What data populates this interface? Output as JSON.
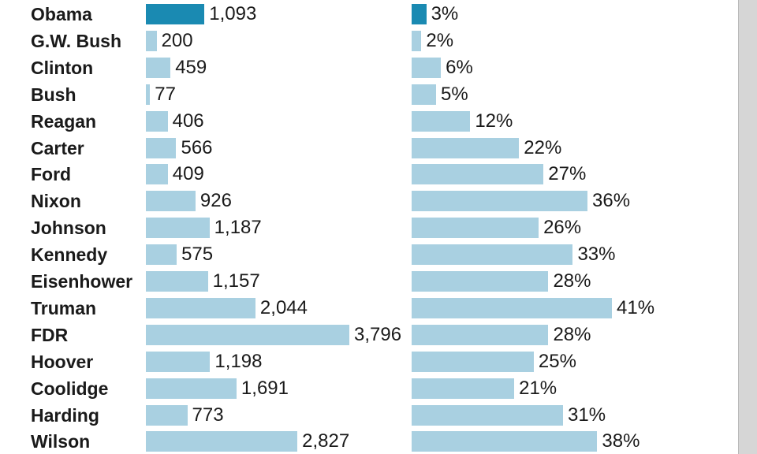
{
  "colors": {
    "bar": "#a9d0e1",
    "highlight": "#1a8ab2"
  },
  "chart_data": [
    {
      "type": "bar",
      "orientation": "horizontal",
      "highlight_category": "Obama",
      "categories": [
        "Obama",
        "G.W. Bush",
        "Clinton",
        "Bush",
        "Reagan",
        "Carter",
        "Ford",
        "Nixon",
        "Johnson",
        "Kennedy",
        "Eisenhower",
        "Truman",
        "FDR",
        "Hoover",
        "Coolidge",
        "Harding",
        "Wilson"
      ],
      "values": [
        1093,
        200,
        459,
        77,
        406,
        566,
        409,
        926,
        1187,
        575,
        1157,
        2044,
        3796,
        1198,
        1691,
        773,
        2827
      ],
      "labels": [
        "1,093",
        "200",
        "459",
        "77",
        "406",
        "566",
        "409",
        "926",
        "1,187",
        "575",
        "1,157",
        "2,044",
        "3,796",
        "1,198",
        "1,691",
        "773",
        "2,827"
      ]
    },
    {
      "type": "bar",
      "orientation": "horizontal",
      "highlight_category": "Obama",
      "categories": [
        "Obama",
        "G.W. Bush",
        "Clinton",
        "Bush",
        "Reagan",
        "Carter",
        "Ford",
        "Nixon",
        "Johnson",
        "Kennedy",
        "Eisenhower",
        "Truman",
        "FDR",
        "Hoover",
        "Coolidge",
        "Harding",
        "Wilson"
      ],
      "values": [
        3,
        2,
        6,
        5,
        12,
        22,
        27,
        36,
        26,
        33,
        28,
        41,
        28,
        25,
        21,
        31,
        38
      ],
      "labels": [
        "3%",
        "2%",
        "6%",
        "5%",
        "12%",
        "22%",
        "27%",
        "36%",
        "26%",
        "33%",
        "28%",
        "41%",
        "28%",
        "25%",
        "21%",
        "31%",
        "38%"
      ]
    }
  ]
}
